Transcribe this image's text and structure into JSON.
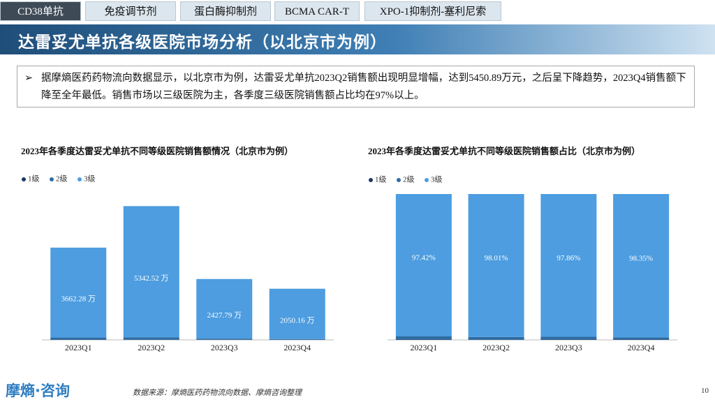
{
  "tabs": [
    "CD38单抗",
    "免疫调节剂",
    "蛋白酶抑制剂",
    "BCMA CAR-T",
    "XPO-1抑制剂-塞利尼索"
  ],
  "header": {
    "title": "达雷妥尤单抗各级医院市场分析（以北京市为例）"
  },
  "summary": "据摩熵医药药物流向数据显示，以北京市为例，达雷妥尤单抗2023Q2销售额出现明显增幅，达到5450.89万元，之后呈下降趋势，2023Q4销售额下降至全年最低。销售市场以三级医院为主，各季度三级医院销售额占比均在97%以上。",
  "chart_data": [
    {
      "type": "stacked_bar",
      "title": "2023年各季度达雷妥尤单抗不同等级医院销售额情况（北京市为例）",
      "categories": [
        "2023Q1",
        "2023Q2",
        "2023Q3",
        "2023Q4"
      ],
      "ylim": [
        0,
        6000
      ],
      "series": [
        {
          "name": "1级",
          "color": "#1f3864",
          "values": [
            10,
            8,
            5,
            4
          ]
        },
        {
          "name": "2级",
          "color": "#2e6da4",
          "values": [
            87,
            100,
            48,
            30
          ]
        },
        {
          "name": "3级",
          "color": "#4d9de0",
          "values": [
            3662.28,
            5342.52,
            2427.79,
            2050.16
          ],
          "value_labels": [
            "3662.28 万",
            "5342.52 万",
            "2427.79 万",
            "2050.16 万"
          ]
        }
      ]
    },
    {
      "type": "stacked_bar",
      "title": "2023年各季度达雷妥尤单抗不同等级医院销售额占比（北京市为例）",
      "categories": [
        "2023Q1",
        "2023Q2",
        "2023Q3",
        "2023Q4"
      ],
      "ylim": [
        0,
        100
      ],
      "series": [
        {
          "name": "1级",
          "color": "#1f3864",
          "values": [
            0.27,
            0.15,
            0.2,
            0.19
          ]
        },
        {
          "name": "2级",
          "color": "#2e6da4",
          "values": [
            2.31,
            1.84,
            1.94,
            1.46
          ]
        },
        {
          "name": "3级",
          "color": "#4d9de0",
          "values": [
            97.42,
            98.01,
            97.86,
            98.35
          ],
          "value_labels": [
            "97.42%",
            "98.01%",
            "97.86%",
            "98.35%"
          ]
        }
      ]
    }
  ],
  "footer": {
    "logo": "摩熵·咨询",
    "source": "数据来源：摩熵医药药物流向数据、摩熵咨询整理",
    "page": "10"
  }
}
